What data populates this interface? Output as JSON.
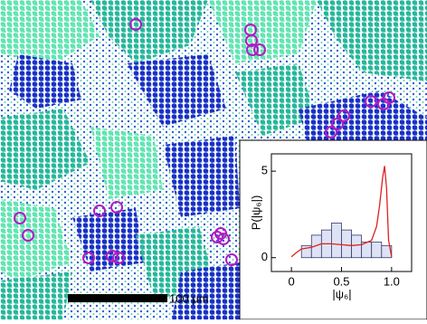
{
  "scale_bar": "100 μm",
  "chart_data": {
    "type": "histogram",
    "xlabel": "|ψ₆|",
    "ylabel": "P(|ψ₆|)",
    "xlim": [
      -0.2,
      1.2
    ],
    "ylim": [
      -0.8,
      6
    ],
    "xticks": [
      0,
      0.5,
      {
        "value": 1,
        "label": "1.0"
      }
    ],
    "yticks": [
      0,
      5
    ],
    "bins": [
      0.1,
      0.2,
      0.3,
      0.4,
      0.5,
      0.6,
      0.7,
      0.8,
      0.9,
      1.0
    ],
    "values": [
      0.7,
      1.3,
      1.6,
      2.0,
      1.6,
      1.3,
      0.9,
      0.9,
      0.7
    ],
    "color": "#dde3f4",
    "edge_color": "#3a3a6a",
    "overlay": {
      "type": "line",
      "color": "#e02020",
      "x": [
        0,
        0.05,
        0.1,
        0.2,
        0.3,
        0.4,
        0.5,
        0.6,
        0.7,
        0.8,
        0.85,
        0.88,
        0.91,
        0.93,
        0.95,
        0.97,
        1.0
      ],
      "values": [
        0.05,
        0.3,
        0.5,
        0.6,
        0.8,
        0.8,
        0.75,
        0.7,
        0.75,
        1.0,
        1.8,
        3.0,
        4.6,
        5.3,
        4.0,
        1.0,
        0.05
      ]
    }
  }
}
